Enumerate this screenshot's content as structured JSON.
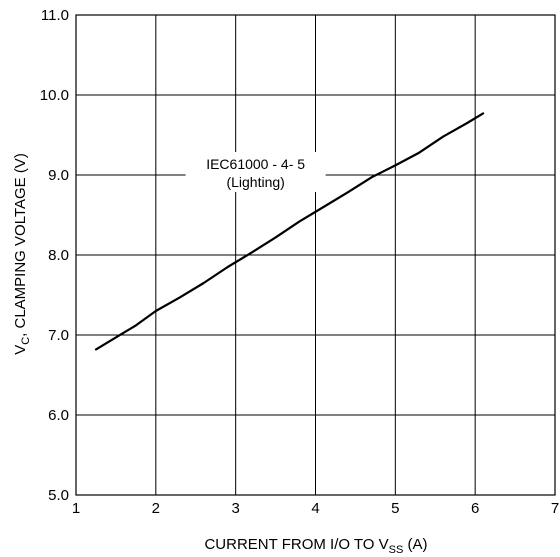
{
  "chart_data": {
    "type": "line",
    "title": "",
    "xlabel": {
      "main": "CURRENT FROM I/O TO V",
      "sub": "SS",
      "unit": " (A)"
    },
    "ylabel": {
      "prefix": "V",
      "sub": "C",
      "main": ", CLAMPING VOLTAGE (V)"
    },
    "xlim": [
      1,
      7
    ],
    "ylim": [
      5.0,
      11.0
    ],
    "x_ticks": [
      1,
      2,
      3,
      4,
      5,
      6,
      7
    ],
    "x_tick_labels": [
      "1",
      "2",
      "3",
      "4",
      "5",
      "6",
      "7"
    ],
    "y_ticks": [
      5.0,
      6.0,
      7.0,
      8.0,
      9.0,
      10.0,
      11.0
    ],
    "y_tick_labels": [
      "5.0",
      "6.0",
      "7.0",
      "8.0",
      "9.0",
      "10.0",
      "11.0"
    ],
    "grid": true,
    "legend": "none",
    "series": [
      {
        "x": [
          1.25,
          1.5,
          1.75,
          2.0,
          2.3,
          2.6,
          2.9,
          3.2,
          3.5,
          3.8,
          4.1,
          4.4,
          4.7,
          5.0,
          5.3,
          5.6,
          5.9,
          6.1
        ],
        "y": [
          6.82,
          6.97,
          7.12,
          7.3,
          7.47,
          7.65,
          7.85,
          8.03,
          8.22,
          8.42,
          8.6,
          8.78,
          8.97,
          9.12,
          9.28,
          9.48,
          9.65,
          9.77
        ],
        "color": "#000000"
      }
    ],
    "annotations": [
      {
        "line1": "IEC61000 - 4- 5",
        "line2": "(Lighting)",
        "x": 3.25,
        "y": 9.05
      }
    ]
  }
}
